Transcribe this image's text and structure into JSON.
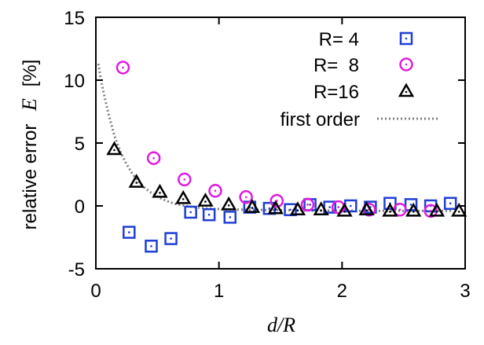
{
  "chart_data": {
    "type": "scatter",
    "xlabel": "d/R",
    "ylabel": {
      "text": "relative error",
      "symbol": "E",
      "unit": "[%]"
    },
    "xlim": [
      0,
      3
    ],
    "ylim": [
      -5,
      15
    ],
    "xticks": [
      "0",
      "1",
      "2",
      "3"
    ],
    "yticks": [
      "15",
      "10",
      "5",
      "0",
      "-5"
    ],
    "grid": false,
    "legend_position": "top-right",
    "series": [
      {
        "name": "R= 4",
        "marker": "square",
        "color": "#1f3fd6",
        "x": [
          0.27,
          0.45,
          0.61,
          0.77,
          0.92,
          1.09,
          1.25,
          1.41,
          1.58,
          1.74,
          1.9,
          2.07,
          2.23,
          2.39,
          2.56,
          2.72,
          2.88
        ],
        "y": [
          -2.1,
          -3.2,
          -2.6,
          -0.5,
          -0.7,
          -0.9,
          -0.1,
          -0.2,
          -0.3,
          0.1,
          -0.1,
          0.0,
          -0.1,
          0.2,
          0.1,
          0.0,
          0.2
        ]
      },
      {
        "name": "R=  8",
        "marker": "circle",
        "color": "#e01be0",
        "x": [
          0.22,
          0.47,
          0.72,
          0.97,
          1.22,
          1.47,
          1.72,
          1.97,
          2.22,
          2.47,
          2.72
        ],
        "y": [
          11.0,
          3.8,
          2.1,
          1.2,
          0.7,
          0.4,
          0.1,
          -0.1,
          -0.3,
          -0.3,
          -0.4
        ]
      },
      {
        "name": "R=16",
        "marker": "triangle",
        "color": "#000000",
        "x": [
          0.15,
          0.33,
          0.52,
          0.71,
          0.89,
          1.08,
          1.27,
          1.46,
          1.64,
          1.83,
          2.02,
          2.2,
          2.39,
          2.58,
          2.77,
          2.95
        ],
        "y": [
          4.5,
          1.9,
          1.1,
          0.6,
          0.4,
          0.1,
          -0.1,
          -0.2,
          -0.3,
          -0.3,
          -0.4,
          -0.3,
          -0.4,
          -0.4,
          -0.4,
          -0.4
        ]
      }
    ],
    "curve": {
      "name": "first order",
      "style": "dotted",
      "color": "#808080",
      "x": [
        0.02,
        0.05,
        0.1,
        0.15,
        0.2,
        0.25,
        0.3,
        0.35,
        0.4,
        0.45,
        0.5,
        0.55,
        0.6,
        0.65,
        0.7,
        0.8,
        0.9,
        1.0,
        1.2,
        1.4,
        1.6,
        1.8,
        2.0,
        2.3,
        2.6,
        2.9
      ],
      "y": [
        11.3,
        9.6,
        7.4,
        5.6,
        4.3,
        3.3,
        2.5,
        1.9,
        1.4,
        1.05,
        0.75,
        0.5,
        0.3,
        0.15,
        0.05,
        -0.1,
        -0.2,
        -0.25,
        -0.3,
        -0.33,
        -0.35,
        -0.37,
        -0.38,
        -0.4,
        -0.4,
        -0.4
      ]
    }
  }
}
